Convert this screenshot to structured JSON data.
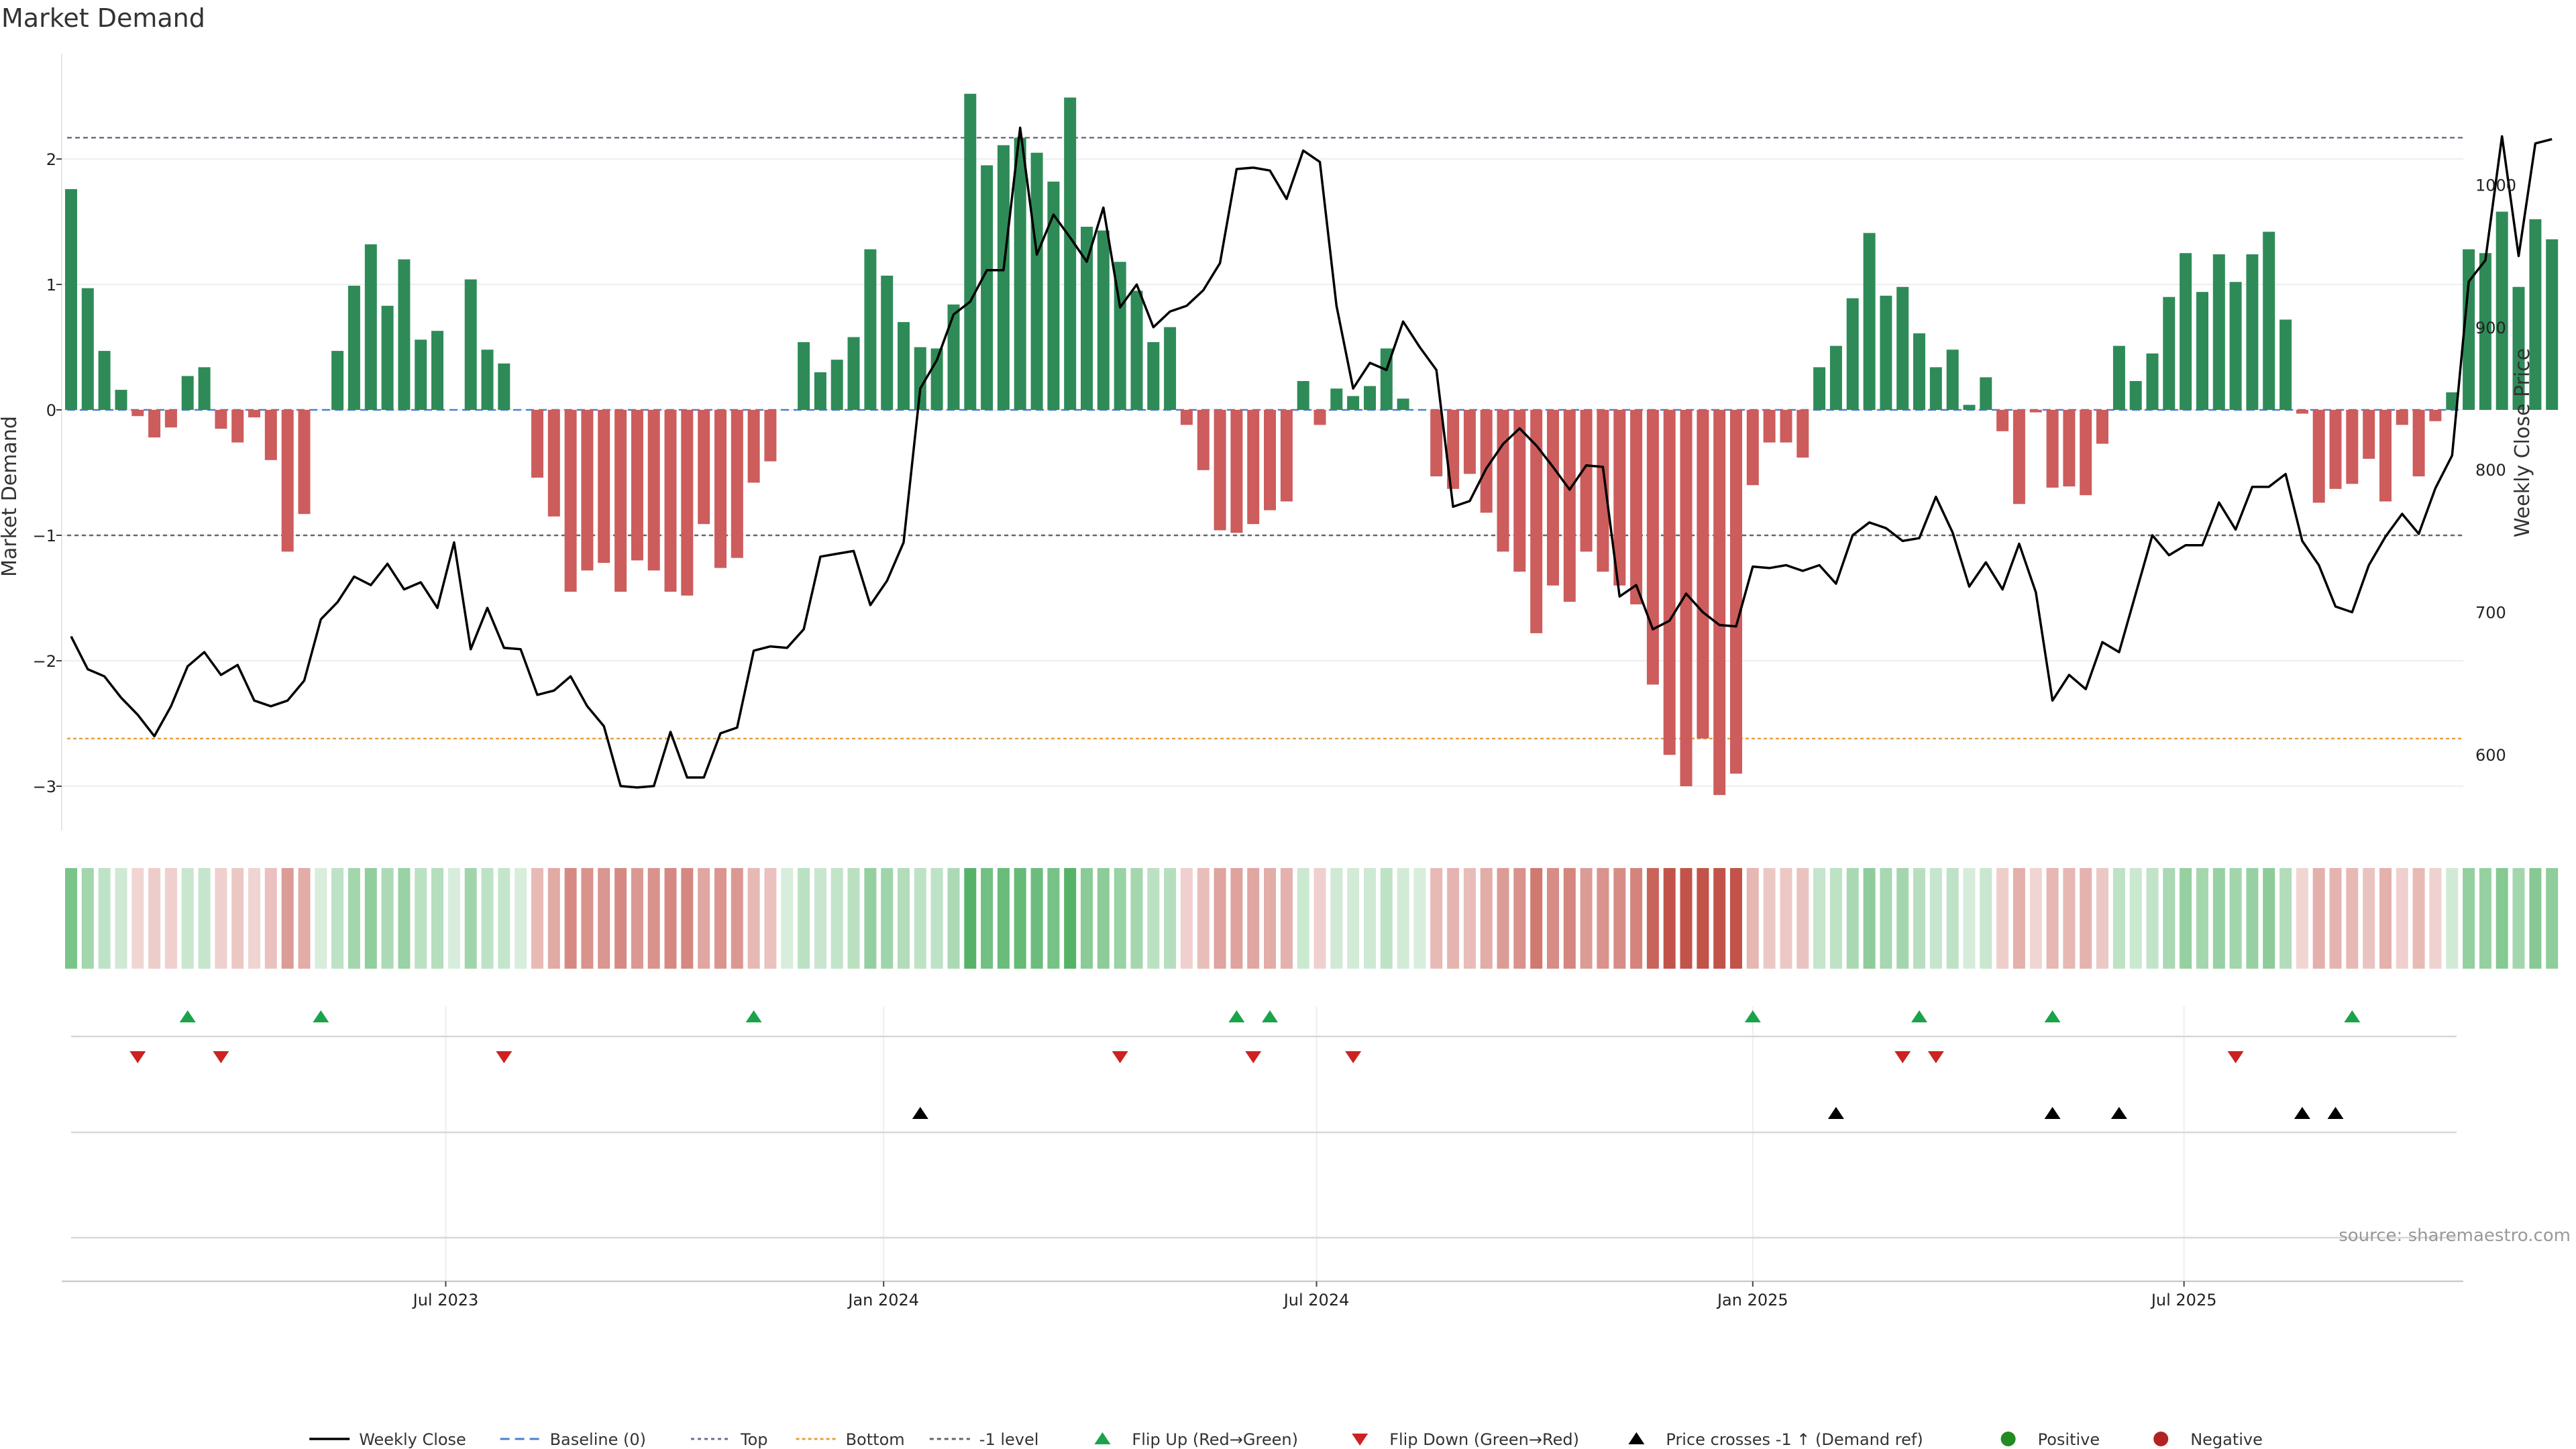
{
  "chart_data": {
    "type": "bar+line",
    "title": "Market Demand",
    "ylabel_left": "Market Demand",
    "ylabel_right": "Weekly Close Price",
    "ylim_left": [
      -3.4,
      2.85
    ],
    "ylim_right": [
      555,
      1100
    ],
    "left_ticks": [
      2,
      1,
      0,
      -1,
      -2,
      -3
    ],
    "left_tick_labels": [
      "2",
      "1",
      "0",
      "−1",
      "−2",
      "−3"
    ],
    "right_ticks": [
      1000,
      900,
      800,
      700,
      600
    ],
    "right_tick_labels": [
      "1000",
      "900",
      "800",
      "700",
      "600"
    ],
    "x_tick_labels": [
      "Jul 2023",
      "Jan 2024",
      "Jul 2024",
      "Jan 2025",
      "Jul 2025"
    ],
    "x_tick_weeks": [
      22.5,
      48.8,
      74.8,
      101,
      126.9
    ],
    "top_level": 2.17,
    "bottom_level": -2.62,
    "neg_one_level": -1,
    "demand": [
      1.76,
      0.97,
      0.47,
      0.16,
      -0.05,
      -0.22,
      -0.14,
      0.27,
      0.34,
      -0.15,
      -0.26,
      -0.06,
      -0.4,
      -1.13,
      -0.83,
      0,
      0.47,
      0.99,
      1.32,
      0.83,
      1.2,
      0.56,
      0.63,
      0,
      1.04,
      0.48,
      0.37,
      0,
      -0.54,
      -0.85,
      -1.45,
      -1.28,
      -1.22,
      -1.45,
      -1.2,
      -1.28,
      -1.45,
      -1.48,
      -0.91,
      -1.26,
      -1.18,
      -0.58,
      -0.41,
      0,
      0.54,
      0.3,
      0.4,
      0.58,
      1.28,
      1.07,
      0.7,
      0.5,
      0.49,
      0.84,
      2.52,
      1.95,
      2.11,
      2.17,
      2.05,
      1.82,
      2.49,
      1.46,
      1.43,
      1.18,
      0.95,
      0.54,
      0.66,
      -0.12,
      -0.48,
      -0.96,
      -0.98,
      -0.91,
      -0.8,
      -0.73,
      0.23,
      -0.12,
      0.17,
      0.11,
      0.19,
      0.49,
      0.09,
      0,
      -0.53,
      -0.63,
      -0.51,
      -0.82,
      -1.13,
      -1.29,
      -1.78,
      -1.4,
      -1.53,
      -1.13,
      -1.29,
      -1.4,
      -1.55,
      -2.19,
      -2.75,
      -3.0,
      -2.62,
      -3.07,
      -2.9,
      -0.6,
      -0.26,
      -0.26,
      -0.38,
      0.34,
      0.51,
      0.89,
      1.41,
      0.91,
      0.98,
      0.61,
      0.34,
      0.48,
      0.04,
      0.26,
      -0.17,
      -0.75,
      -0.02,
      -0.62,
      -0.61,
      -0.68,
      -0.27,
      0.51,
      0.23,
      0.45,
      0.9,
      1.25,
      0.94,
      1.24,
      1.02,
      1.24,
      1.42,
      0.72,
      -0.03,
      -0.74,
      -0.63,
      -0.59,
      -0.39,
      -0.73,
      -0.12,
      -0.53,
      -0.09,
      0.14,
      1.28,
      1.25,
      1.58,
      0.98,
      1.52,
      1.36
    ],
    "close": [
      683,
      660,
      655,
      640,
      628,
      613,
      634,
      662,
      672,
      656,
      663,
      638,
      634,
      638,
      652,
      695,
      707,
      725,
      719,
      734,
      716,
      721,
      703,
      749,
      674,
      703,
      675,
      674,
      642,
      645,
      655,
      634,
      620,
      578,
      577,
      578,
      616,
      584,
      584,
      615,
      619,
      673,
      676,
      675,
      688,
      739,
      741,
      743,
      705,
      722,
      749,
      857,
      877,
      909,
      918,
      940,
      940,
      1040,
      951,
      979,
      963,
      946,
      984,
      914,
      930,
      900,
      911,
      915,
      926,
      945,
      1011,
      1012,
      1010,
      990,
      1024,
      1016,
      915,
      857,
      875,
      870,
      904,
      886,
      870,
      774,
      778,
      801,
      818,
      829,
      817,
      802,
      786,
      803,
      802,
      711,
      719,
      688,
      694,
      713,
      700,
      691,
      690,
      732,
      731,
      733,
      729,
      733,
      720,
      754,
      763,
      759,
      750,
      752,
      781,
      756,
      718,
      735,
      716,
      748,
      714,
      638,
      656,
      646,
      679,
      672,
      713,
      754,
      740,
      747,
      747,
      777,
      758,
      788,
      788,
      797,
      750,
      733,
      704,
      700,
      733,
      753,
      769,
      755,
      787,
      810,
      932,
      947,
      1034,
      950,
      1029,
      1032
    ],
    "flip_up_weeks": [
      7,
      15,
      41,
      70,
      72,
      101,
      111,
      119,
      137
    ],
    "flip_down_weeks": [
      4,
      9,
      26,
      63,
      71,
      77,
      110,
      112,
      130
    ],
    "cross_weeks": [
      51,
      106,
      119,
      123,
      134,
      136
    ],
    "colors": {
      "positive_bar": "#2e8b57",
      "negative_bar": "#cd5c5c",
      "price_line": "#000000",
      "baseline": "#4c7fcf",
      "top": "#6f6f8f",
      "bottom": "#e8a040",
      "neg_one": "#666666",
      "flip_up": "#1aa34a",
      "flip_down": "#cc2222",
      "cross": "#000000",
      "positive_dot": "#228b22",
      "negative_dot": "#b22222"
    },
    "legend": [
      {
        "label": "Weekly Close",
        "kind": "line"
      },
      {
        "label": "Baseline (0)",
        "kind": "dash-blue"
      },
      {
        "label": "Top",
        "kind": "dot-purple"
      },
      {
        "label": "Bottom",
        "kind": "dot-orange"
      },
      {
        "label": "-1 level",
        "kind": "dot-gray"
      },
      {
        "label": "Flip Up (Red→Green)",
        "kind": "tri-up-green"
      },
      {
        "label": "Flip Down (Green→Red)",
        "kind": "tri-down-red"
      },
      {
        "label": "Price crosses -1 ↑ (Demand ref)",
        "kind": "tri-up-black"
      },
      {
        "label": "Positive",
        "kind": "dot-green"
      },
      {
        "label": "Negative",
        "kind": "dot-red"
      }
    ],
    "source": "source: sharemaestro.com"
  }
}
